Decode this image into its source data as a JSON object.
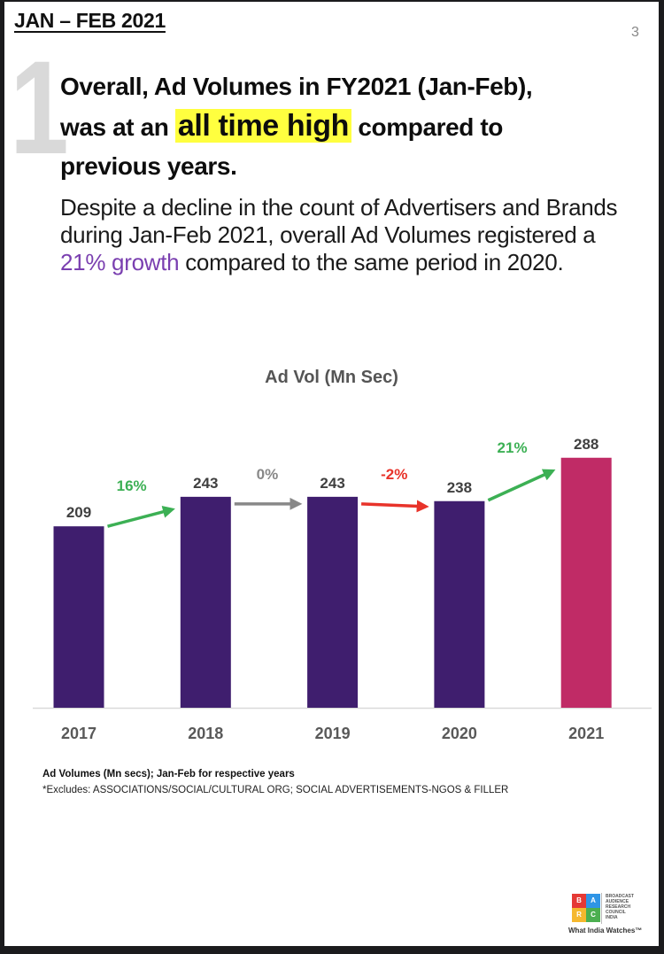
{
  "header": {
    "period": "JAN – FEB 2021",
    "page_number": "3",
    "section_number": "1"
  },
  "headline": {
    "part1": "Overall, Ad Volumes in FY2021 (Jan-Feb),",
    "part2": "was at an ",
    "highlight": "all time high",
    "part3": " compared to",
    "part4": "previous years."
  },
  "body": {
    "part1": "Despite a decline in the count of Advertisers and Brands during Jan-Feb 2021, overall Ad Volumes registered a ",
    "accent": "21% growth",
    "part2": " compared to the same period in 2020."
  },
  "colors": {
    "bar_default": "#3f1e6e",
    "bar_highlight": "#c02b66",
    "growth_positive": "#3cb054",
    "growth_neutral": "#888888",
    "growth_negative": "#e8332a",
    "highlight_bg": "#ffff3f",
    "accent_text": "#7a3fb0"
  },
  "chart_data": {
    "type": "bar",
    "title": "Ad Vol (Mn Sec)",
    "xlabel": "",
    "ylabel": "",
    "categories": [
      "2017",
      "2018",
      "2019",
      "2020",
      "2021"
    ],
    "values": [
      209,
      243,
      243,
      238,
      288
    ],
    "data_labels": [
      "209",
      "243",
      "243",
      "238",
      "288"
    ],
    "highlighted_category": "2021",
    "ylim": [
      0,
      288
    ],
    "grid": false,
    "legend": "none",
    "annotations": [
      {
        "from": "2017",
        "to": "2018",
        "label": "16%",
        "trend": "positive"
      },
      {
        "from": "2018",
        "to": "2019",
        "label": "0%",
        "trend": "neutral"
      },
      {
        "from": "2019",
        "to": "2020",
        "label": "-2%",
        "trend": "negative"
      },
      {
        "from": "2020",
        "to": "2021",
        "label": "21%",
        "trend": "positive"
      }
    ]
  },
  "footnotes": {
    "line1": "Ad Volumes (Mn secs); Jan-Feb for respective years",
    "line2": "*Excludes: ASSOCIATIONS/SOCIAL/CULTURAL ORG; SOCIAL ADVERTISEMENTS-NGOS & FILLER"
  },
  "logo": {
    "tiles": [
      "B",
      "A",
      "R",
      "C"
    ],
    "org_lines": [
      "BROADCAST",
      "AUDIENCE",
      "RESEARCH",
      "COUNCIL",
      "INDIA"
    ],
    "tagline": "What India Watches™"
  }
}
